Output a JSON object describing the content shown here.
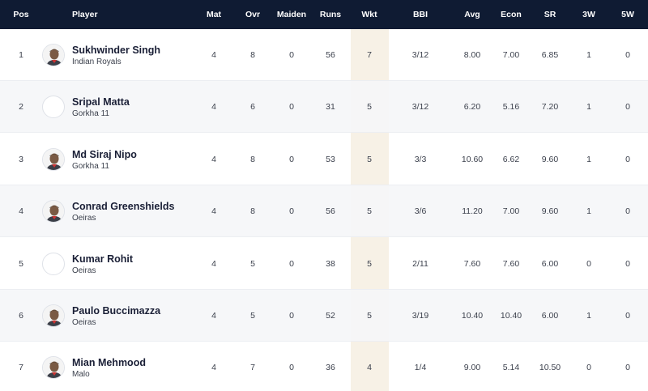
{
  "columns": {
    "pos": "Pos",
    "player": "Player",
    "mat": "Mat",
    "ovr": "Ovr",
    "maiden": "Maiden",
    "runs": "Runs",
    "wkt": "Wkt",
    "bbi": "BBI",
    "avg": "Avg",
    "econ": "Econ",
    "sr": "SR",
    "w3": "3W",
    "w5": "5W"
  },
  "rows": [
    {
      "pos": "1",
      "name": "Sukhwinder Singh",
      "team": "Indian Royals",
      "avatar": "player-photo",
      "mat": "4",
      "ovr": "8",
      "maiden": "0",
      "runs": "56",
      "wkt": "7",
      "bbi": "3/12",
      "avg": "8.00",
      "econ": "7.00",
      "sr": "6.85",
      "w3": "1",
      "w5": "0"
    },
    {
      "pos": "2",
      "name": "Sripal Matta",
      "team": "Gorkha 11",
      "avatar": "blank-avatar",
      "mat": "4",
      "ovr": "6",
      "maiden": "0",
      "runs": "31",
      "wkt": "5",
      "bbi": "3/12",
      "avg": "6.20",
      "econ": "5.16",
      "sr": "7.20",
      "w3": "1",
      "w5": "0"
    },
    {
      "pos": "3",
      "name": "Md Siraj Nipo",
      "team": "Gorkha 11",
      "avatar": "player-photo",
      "mat": "4",
      "ovr": "8",
      "maiden": "0",
      "runs": "53",
      "wkt": "5",
      "bbi": "3/3",
      "avg": "10.60",
      "econ": "6.62",
      "sr": "9.60",
      "w3": "1",
      "w5": "0"
    },
    {
      "pos": "4",
      "name": "Conrad Greenshields",
      "team": "Oeiras",
      "avatar": "player-photo",
      "mat": "4",
      "ovr": "8",
      "maiden": "0",
      "runs": "56",
      "wkt": "5",
      "bbi": "3/6",
      "avg": "11.20",
      "econ": "7.00",
      "sr": "9.60",
      "w3": "1",
      "w5": "0"
    },
    {
      "pos": "5",
      "name": "Kumar Rohit",
      "team": "Oeiras",
      "avatar": "blank-avatar",
      "mat": "4",
      "ovr": "5",
      "maiden": "0",
      "runs": "38",
      "wkt": "5",
      "bbi": "2/11",
      "avg": "7.60",
      "econ": "7.60",
      "sr": "6.00",
      "w3": "0",
      "w5": "0"
    },
    {
      "pos": "6",
      "name": "Paulo Buccimazza",
      "team": "Oeiras",
      "avatar": "player-photo",
      "mat": "4",
      "ovr": "5",
      "maiden": "0",
      "runs": "52",
      "wkt": "5",
      "bbi": "3/19",
      "avg": "10.40",
      "econ": "10.40",
      "sr": "6.00",
      "w3": "1",
      "w5": "0"
    },
    {
      "pos": "7",
      "name": "Mian Mehmood",
      "team": "Malo",
      "avatar": "player-photo",
      "mat": "4",
      "ovr": "7",
      "maiden": "0",
      "runs": "36",
      "wkt": "4",
      "bbi": "1/4",
      "avg": "9.00",
      "econ": "5.14",
      "sr": "10.50",
      "w3": "0",
      "w5": "0"
    }
  ],
  "colors": {
    "header_bg": "#0f1b33",
    "highlight_col": "#f7f1e6",
    "alt_row": "#f5f6f8"
  }
}
